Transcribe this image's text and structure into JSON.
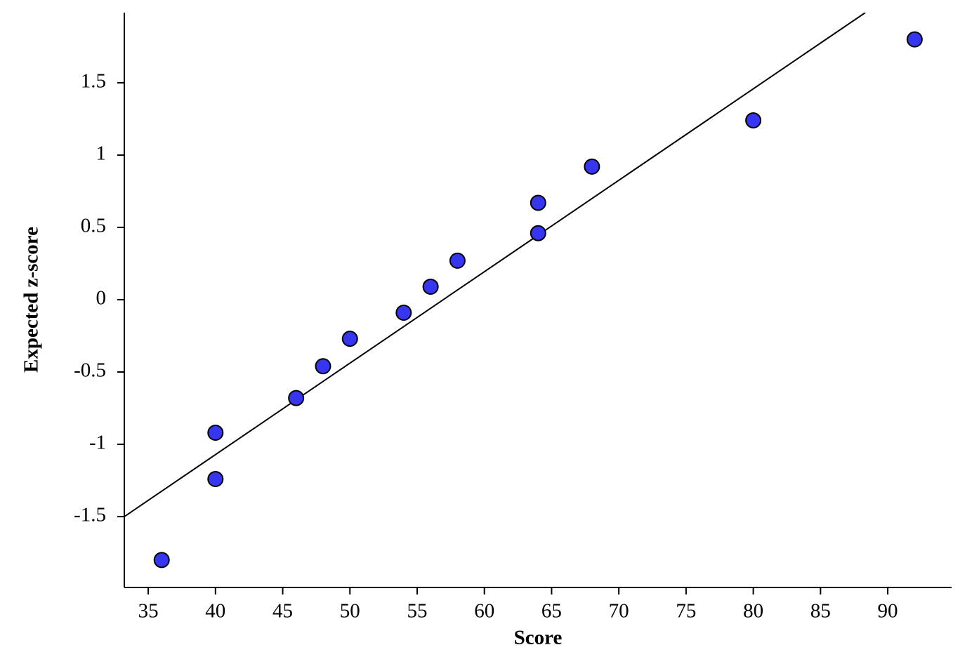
{
  "chart_data": {
    "type": "scatter",
    "x_label": "Score",
    "y_label": "Expected z-score",
    "series": [
      {
        "color": "#3636f0",
        "x": [
          36,
          40,
          40,
          46,
          48,
          50,
          54,
          56,
          58,
          64,
          64,
          68,
          80,
          92
        ],
        "values": [
          -1.8,
          -1.24,
          -0.92,
          -0.68,
          -0.46,
          -0.27,
          -0.09,
          0.09,
          0.27,
          0.46,
          0.67,
          0.92,
          1.24,
          1.8
        ]
      }
    ],
    "fit_line": {
      "x": [
        33.22,
        88.33
      ],
      "y": [
        -1.5,
        1.985
      ],
      "color": "#000000"
    },
    "xlim": [
      33.22,
      94.75
    ],
    "ylim": [
      -1.99,
      1.985
    ],
    "xticks": [
      35,
      40,
      45,
      50,
      55,
      60,
      65,
      70,
      75,
      80,
      85,
      90
    ],
    "yticks": [
      -1.5,
      -1,
      -0.5,
      0,
      0.5,
      1,
      1.5
    ],
    "grid": false
  }
}
